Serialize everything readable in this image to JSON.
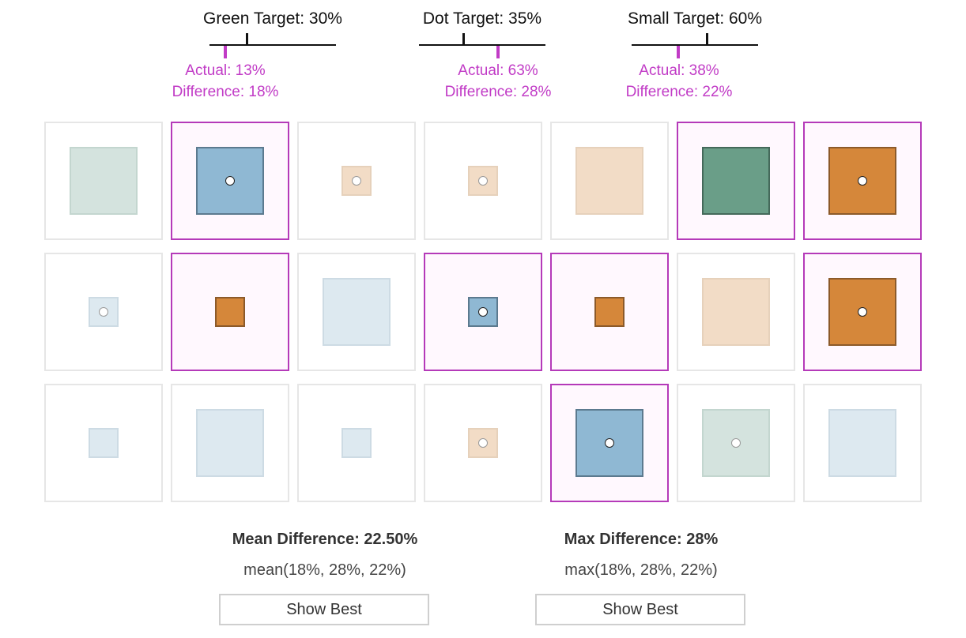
{
  "gauges": [
    {
      "title": "Green Target: 30%",
      "actual": "Actual: 13%",
      "difference": "Difference: 18%"
    },
    {
      "title": "Dot Target: 35%",
      "actual": "Actual: 63%",
      "difference": "Difference: 28%"
    },
    {
      "title": "Small Target: 60%",
      "actual": "Actual: 38%",
      "difference": "Difference: 22%"
    }
  ],
  "targets": {
    "green": 30,
    "dot": 35,
    "small": 60
  },
  "actuals": {
    "green": 13,
    "dot": 63,
    "small": 38
  },
  "colors": {
    "accent": "#c13bc6",
    "selected_border": "#b53ab9",
    "blue": "#8fb8d3",
    "orange": "#d5873a",
    "green": "#6a9e88",
    "blue_faded": "#dde9f0",
    "orange_faded": "#f2dcc6",
    "green_faded": "#d4e3de"
  },
  "grid": [
    [
      {
        "color": "green",
        "size": "large",
        "dot": false,
        "selected": false
      },
      {
        "color": "blue",
        "size": "large",
        "dot": true,
        "selected": true
      },
      {
        "color": "orange",
        "size": "small",
        "dot": true,
        "selected": false
      },
      {
        "color": "orange",
        "size": "small",
        "dot": true,
        "selected": false
      },
      {
        "color": "orange",
        "size": "large",
        "dot": false,
        "selected": false
      },
      {
        "color": "green",
        "size": "large",
        "dot": false,
        "selected": true
      },
      {
        "color": "orange",
        "size": "large",
        "dot": true,
        "selected": true
      }
    ],
    [
      {
        "color": "blue",
        "size": "small",
        "dot": true,
        "selected": false
      },
      {
        "color": "orange",
        "size": "small",
        "dot": false,
        "selected": true
      },
      {
        "color": "blue",
        "size": "large",
        "dot": false,
        "selected": false
      },
      {
        "color": "blue",
        "size": "small",
        "dot": true,
        "selected": true
      },
      {
        "color": "orange",
        "size": "small",
        "dot": false,
        "selected": true
      },
      {
        "color": "orange",
        "size": "large",
        "dot": false,
        "selected": false
      },
      {
        "color": "orange",
        "size": "large",
        "dot": true,
        "selected": true
      }
    ],
    [
      {
        "color": "blue",
        "size": "small",
        "dot": false,
        "selected": false
      },
      {
        "color": "blue",
        "size": "large",
        "dot": false,
        "selected": false
      },
      {
        "color": "blue",
        "size": "small",
        "dot": false,
        "selected": false
      },
      {
        "color": "orange",
        "size": "small",
        "dot": true,
        "selected": false
      },
      {
        "color": "blue",
        "size": "large",
        "dot": true,
        "selected": true
      },
      {
        "color": "green",
        "size": "large",
        "dot": true,
        "selected": false
      },
      {
        "color": "blue",
        "size": "large",
        "dot": false,
        "selected": false
      }
    ]
  ],
  "summary": {
    "mean_title": "Mean Difference: 22.50%",
    "mean_formula": "mean(18%, 28%, 22%)",
    "max_title": "Max Difference: 28%",
    "max_formula": "max(18%, 28%, 22%)",
    "show_best_label": "Show Best"
  }
}
